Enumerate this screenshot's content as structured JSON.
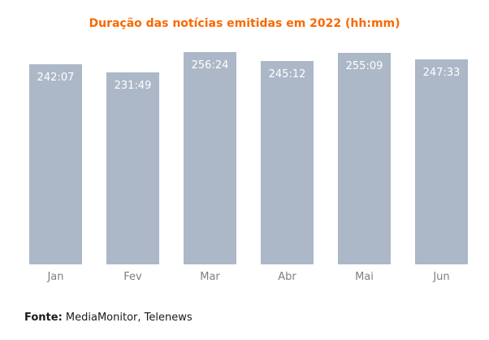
{
  "chart_data": {
    "type": "bar",
    "title": "Duração das notícias emitidas em 2022 (hh:mm)",
    "categories": [
      "Jan",
      "Fev",
      "Mar",
      "Abr",
      "Mai",
      "Jun"
    ],
    "values": [
      242.12,
      231.82,
      256.4,
      245.2,
      255.15,
      247.55
    ],
    "value_labels": [
      "242:07",
      "231:49",
      "256:24",
      "245:12",
      "255:09",
      "247:33"
    ],
    "unit": "hh:mm",
    "xlabel": "",
    "ylabel": "",
    "ylim": [
      0,
      260
    ],
    "grid": false,
    "legend": false,
    "bar_color": "#ACB8C8",
    "value_label_color": "#FFFFFF",
    "axis_label_color": "#7F7F7F",
    "title_color": "#F96900"
  },
  "footer": {
    "prefix": "Fonte:",
    "text": " MediaMonitor, Telenews"
  }
}
